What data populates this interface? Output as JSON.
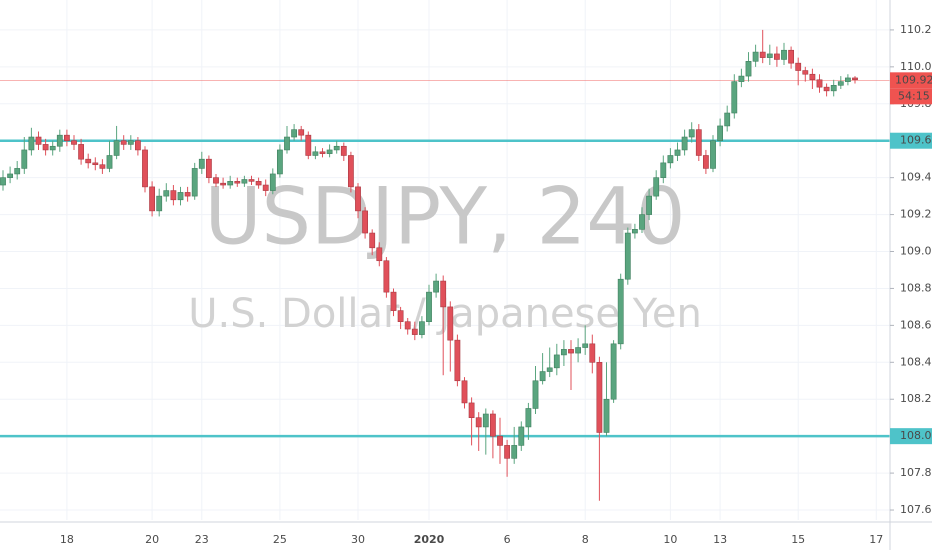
{
  "chart_data": {
    "type": "candlestick",
    "title": "USDJPY, 240",
    "subtitle": "U.S. Dollar / Japanese Yen",
    "up_color": "#5aa57f",
    "down_color": "#e0505a",
    "grid": true,
    "grid_color": "#f0f3f8",
    "categories": [
      null,
      null,
      null,
      null,
      null,
      null,
      null,
      null,
      null,
      "18",
      null,
      null,
      null,
      null,
      null,
      null,
      null,
      null,
      null,
      null,
      null,
      "20",
      null,
      null,
      null,
      null,
      null,
      null,
      "23",
      null,
      null,
      null,
      null,
      null,
      null,
      null,
      null,
      null,
      null,
      "25",
      null,
      null,
      null,
      null,
      null,
      null,
      null,
      null,
      null,
      null,
      "30",
      null,
      null,
      null,
      null,
      null,
      null,
      null,
      null,
      null,
      "2020",
      null,
      null,
      null,
      null,
      null,
      null,
      null,
      null,
      null,
      null,
      "6",
      null,
      null,
      null,
      null,
      null,
      null,
      null,
      null,
      null,
      null,
      "8",
      null,
      null,
      null,
      null,
      null,
      null,
      null,
      null,
      null,
      null,
      null,
      "10",
      null,
      null,
      null,
      null,
      null,
      null,
      "13",
      null,
      null,
      null,
      null,
      null,
      null,
      null,
      null,
      null,
      null,
      "15",
      null,
      null,
      null,
      null,
      null,
      null,
      null,
      null,
      null,
      null,
      "17"
    ],
    "open": [
      109.36,
      109.4,
      109.42,
      109.45,
      109.55,
      109.62,
      109.58,
      109.55,
      109.57,
      109.63,
      109.6,
      109.58,
      109.5,
      109.48,
      109.47,
      109.45,
      109.52,
      109.6,
      109.58,
      109.6,
      109.55,
      109.35,
      109.22,
      109.3,
      109.33,
      109.28,
      109.32,
      109.3,
      109.45,
      109.5,
      109.4,
      109.37,
      109.36,
      109.38,
      109.37,
      109.39,
      109.38,
      109.36,
      109.33,
      109.42,
      109.55,
      109.62,
      109.66,
      109.63,
      109.52,
      109.54,
      109.53,
      109.55,
      109.57,
      109.52,
      109.35,
      109.22,
      109.1,
      109.02,
      108.95,
      108.78,
      108.68,
      108.62,
      108.58,
      108.55,
      108.62,
      108.78,
      108.84,
      108.7,
      108.52,
      108.3,
      108.18,
      108.1,
      108.05,
      108.12,
      108.0,
      107.95,
      107.88,
      107.95,
      108.05,
      108.15,
      108.3,
      108.35,
      108.37,
      108.44,
      108.47,
      108.45,
      108.48,
      108.5,
      108.4,
      108.02,
      108.2,
      108.5,
      108.85,
      109.1,
      109.12,
      109.2,
      109.3,
      109.4,
      109.48,
      109.52,
      109.55,
      109.62,
      109.66,
      109.52,
      109.45,
      109.6,
      109.68,
      109.75,
      109.92,
      109.95,
      110.03,
      110.08,
      110.05,
      110.07,
      110.04,
      110.09,
      110.02,
      109.98,
      109.96,
      109.93,
      109.89,
      109.87,
      109.9,
      109.92,
      109.94,
      null,
      null,
      null
    ],
    "high": [
      109.44,
      109.46,
      109.49,
      109.62,
      109.67,
      109.65,
      109.61,
      109.6,
      109.66,
      109.66,
      109.63,
      109.61,
      109.53,
      109.51,
      109.5,
      109.6,
      109.68,
      109.63,
      109.63,
      109.62,
      109.57,
      109.38,
      109.34,
      109.37,
      109.36,
      109.35,
      109.35,
      109.48,
      109.54,
      109.52,
      109.42,
      109.4,
      109.41,
      109.4,
      109.41,
      109.41,
      109.4,
      109.39,
      109.45,
      109.58,
      109.68,
      109.69,
      109.68,
      109.65,
      109.57,
      109.56,
      109.58,
      109.6,
      109.59,
      109.54,
      109.37,
      109.24,
      109.12,
      109.05,
      108.97,
      108.8,
      108.7,
      108.64,
      108.62,
      108.65,
      108.82,
      108.88,
      108.87,
      108.73,
      108.55,
      108.32,
      108.21,
      108.13,
      108.15,
      108.14,
      108.1,
      107.98,
      108.05,
      108.08,
      108.18,
      108.38,
      108.45,
      108.48,
      108.5,
      108.52,
      108.52,
      108.53,
      108.6,
      108.55,
      108.43,
      108.4,
      108.52,
      108.88,
      109.13,
      109.15,
      109.24,
      109.34,
      109.44,
      109.52,
      109.56,
      109.59,
      109.66,
      109.7,
      109.69,
      109.55,
      109.63,
      109.72,
      109.79,
      109.96,
      109.99,
      110.08,
      110.12,
      110.2,
      110.12,
      110.11,
      110.13,
      110.11,
      110.05,
      110.0,
      109.99,
      109.96,
      109.91,
      109.93,
      109.95,
      109.96,
      109.95,
      null,
      null,
      null
    ],
    "low": [
      109.33,
      109.37,
      109.39,
      109.42,
      109.52,
      109.55,
      109.52,
      109.52,
      109.54,
      109.57,
      109.55,
      109.47,
      109.45,
      109.44,
      109.42,
      109.43,
      109.5,
      109.55,
      109.55,
      109.52,
      109.32,
      109.19,
      109.19,
      109.27,
      109.25,
      109.25,
      109.27,
      109.28,
      109.42,
      109.37,
      109.35,
      109.34,
      109.34,
      109.35,
      109.35,
      109.36,
      109.34,
      109.3,
      109.31,
      109.4,
      109.53,
      109.6,
      109.6,
      109.5,
      109.5,
      109.51,
      109.51,
      109.53,
      109.49,
      109.32,
      109.18,
      109.07,
      108.98,
      108.92,
      108.75,
      108.65,
      108.58,
      108.55,
      108.52,
      108.53,
      108.6,
      108.75,
      108.33,
      108.35,
      108.27,
      108.15,
      107.95,
      107.92,
      107.9,
      107.88,
      107.85,
      107.78,
      107.85,
      107.92,
      107.98,
      108.12,
      108.28,
      108.32,
      108.33,
      108.38,
      108.25,
      108.4,
      108.44,
      108.34,
      107.65,
      108.0,
      108.18,
      108.47,
      108.82,
      109.07,
      109.1,
      109.17,
      109.28,
      109.37,
      109.45,
      109.49,
      109.52,
      109.59,
      109.49,
      109.42,
      109.43,
      109.57,
      109.65,
      109.72,
      109.89,
      109.92,
      110.0,
      110.02,
      110.01,
      110.0,
      110.01,
      109.99,
      109.9,
      109.92,
      109.88,
      109.86,
      109.84,
      109.84,
      109.88,
      109.9,
      109.91,
      null,
      null,
      null
    ],
    "close": [
      109.4,
      109.42,
      109.45,
      109.55,
      109.62,
      109.58,
      109.55,
      109.57,
      109.63,
      109.6,
      109.58,
      109.5,
      109.48,
      109.47,
      109.45,
      109.52,
      109.6,
      109.58,
      109.6,
      109.55,
      109.35,
      109.22,
      109.3,
      109.33,
      109.28,
      109.32,
      109.3,
      109.45,
      109.5,
      109.4,
      109.37,
      109.36,
      109.38,
      109.37,
      109.39,
      109.38,
      109.36,
      109.33,
      109.42,
      109.55,
      109.62,
      109.66,
      109.63,
      109.52,
      109.54,
      109.53,
      109.55,
      109.57,
      109.52,
      109.35,
      109.22,
      109.1,
      109.02,
      108.95,
      108.78,
      108.68,
      108.62,
      108.58,
      108.55,
      108.62,
      108.78,
      108.84,
      108.7,
      108.52,
      108.3,
      108.18,
      108.1,
      108.05,
      108.12,
      108.0,
      107.95,
      107.88,
      107.95,
      108.05,
      108.15,
      108.3,
      108.35,
      108.37,
      108.44,
      108.47,
      108.45,
      108.48,
      108.5,
      108.4,
      108.02,
      108.2,
      108.5,
      108.85,
      109.1,
      109.12,
      109.2,
      109.3,
      109.4,
      109.48,
      109.52,
      109.55,
      109.62,
      109.66,
      109.52,
      109.45,
      109.6,
      109.68,
      109.75,
      109.92,
      109.95,
      110.03,
      110.08,
      110.05,
      110.07,
      110.04,
      110.09,
      110.02,
      109.98,
      109.96,
      109.93,
      109.89,
      109.87,
      109.9,
      109.92,
      109.94,
      109.93,
      null,
      null,
      null
    ],
    "ylim": [
      107.546,
      110.362
    ],
    "yticks": [
      {
        "value": 107.6,
        "label": "107.600"
      },
      {
        "value": 107.8,
        "label": "107.800"
      },
      {
        "value": 108.0,
        "label": "108.000"
      },
      {
        "value": 108.2,
        "label": "108.200"
      },
      {
        "value": 108.4,
        "label": "108.400"
      },
      {
        "value": 108.6,
        "label": "108.600"
      },
      {
        "value": 108.8,
        "label": "108.800"
      },
      {
        "value": 109.0,
        "label": "109.000"
      },
      {
        "value": 109.2,
        "label": "109.200"
      },
      {
        "value": 109.4,
        "label": "109.400"
      },
      {
        "value": 109.6,
        "label": "109.600"
      },
      {
        "value": 109.8,
        "label": "109.800"
      },
      {
        "value": 110.0,
        "label": "110.000"
      },
      {
        "value": 110.2,
        "label": "110.200"
      }
    ],
    "levels": [
      {
        "value": 109.6,
        "label": "109.600",
        "color": "#4ec3c9"
      },
      {
        "value": 108.0,
        "label": "108.000",
        "color": "#4ec3c9"
      }
    ],
    "last_price": {
      "value": 109.927,
      "label": "109.927",
      "countdown": "54:15",
      "color": "#ef5350"
    }
  }
}
